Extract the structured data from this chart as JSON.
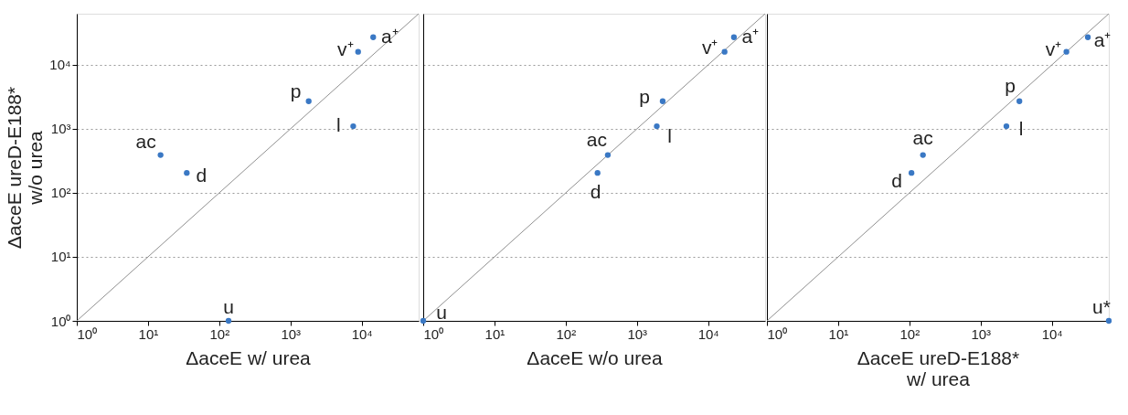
{
  "chart_data": [
    {
      "type": "scatter",
      "xlabel": "ΔaceE w/ urea",
      "ylabel": "ΔaceE ureD-E188*\nw/o urea",
      "log": "xy",
      "grid": "y",
      "xlim": [
        1,
        63000
      ],
      "ylim": [
        1,
        63000
      ],
      "xticks": [
        {
          "value": 1,
          "label": "10⁰"
        },
        {
          "value": 10,
          "label": "10¹"
        },
        {
          "value": 100,
          "label": "10²"
        },
        {
          "value": 1000,
          "label": "10³"
        },
        {
          "value": 10000,
          "label": "10⁴"
        }
      ],
      "yticks": [
        {
          "value": 1,
          "label": "10⁰"
        },
        {
          "value": 10,
          "label": "10¹"
        },
        {
          "value": 100,
          "label": "10²"
        },
        {
          "value": 1000,
          "label": "10³"
        },
        {
          "value": 10000,
          "label": "10⁴"
        }
      ],
      "series": [
        {
          "type": "line",
          "color": "#909090",
          "x": [
            1,
            63000
          ],
          "values": [
            1,
            63000
          ]
        },
        {
          "color": "#3a78c4",
          "x": [
            14500,
            8900,
            1800,
            7600,
            15,
            35,
            135
          ],
          "values": [
            27000,
            16000,
            2700,
            1100,
            390,
            205,
            1
          ]
        }
      ],
      "annotations": [
        {
          "text": "a⁺",
          "x": 14500,
          "y": 27000
        },
        {
          "text": "v⁺",
          "x": 8900,
          "y": 16000
        },
        {
          "text": "p",
          "x": 1800,
          "y": 2700
        },
        {
          "text": "l",
          "x": 7600,
          "y": 1100
        },
        {
          "text": "ac",
          "x": 15,
          "y": 390
        },
        {
          "text": "d",
          "x": 35,
          "y": 205
        },
        {
          "text": "u",
          "x": 135,
          "y": 1
        }
      ]
    },
    {
      "type": "scatter",
      "xlabel": "ΔaceE w/o urea",
      "log": "xy",
      "grid": "y",
      "tick_labels": "x",
      "xlim": [
        1,
        63000
      ],
      "ylim": [
        1,
        63000
      ],
      "xticks": [
        {
          "value": 1,
          "label": "10⁰"
        },
        {
          "value": 10,
          "label": "10¹"
        },
        {
          "value": 100,
          "label": "10²"
        },
        {
          "value": 1000,
          "label": "10³"
        },
        {
          "value": 10000,
          "label": "10⁴"
        }
      ],
      "yticks": [
        {
          "value": 1,
          "label": null
        },
        {
          "value": 10,
          "label": null
        },
        {
          "value": 100,
          "label": null
        },
        {
          "value": 1000,
          "label": null
        },
        {
          "value": 10000,
          "label": null
        }
      ],
      "series": [
        {
          "type": "line",
          "color": "#909090",
          "x": [
            1,
            63000
          ],
          "values": [
            1,
            63000
          ]
        },
        {
          "color": "#3a78c4",
          "x": [
            23000,
            17000,
            2300,
            1900,
            390,
            280,
            1
          ],
          "values": [
            27000,
            16000,
            2700,
            1100,
            390,
            205,
            1
          ]
        }
      ],
      "annotations": [
        {
          "text": "a⁺",
          "x": 23000,
          "y": 27000
        },
        {
          "text": "v⁺",
          "x": 17000,
          "y": 16000
        },
        {
          "text": "p",
          "x": 2300,
          "y": 2700
        },
        {
          "text": "l",
          "x": 1900,
          "y": 1100
        },
        {
          "text": "ac",
          "x": 390,
          "y": 390
        },
        {
          "text": "d",
          "x": 280,
          "y": 205
        },
        {
          "text": "u",
          "x": 1,
          "y": 1
        }
      ]
    },
    {
      "type": "scatter",
      "xlabel": "ΔaceE ureD-E188*\nw/ urea",
      "log": "xy",
      "grid": "y",
      "tick_labels": "x",
      "xlim": [
        1,
        63000
      ],
      "ylim": [
        1,
        63000
      ],
      "xticks": [
        {
          "value": 1,
          "label": "10⁰"
        },
        {
          "value": 10,
          "label": "10¹"
        },
        {
          "value": 100,
          "label": "10²"
        },
        {
          "value": 1000,
          "label": "10³"
        },
        {
          "value": 10000,
          "label": "10⁴"
        }
      ],
      "yticks": [
        {
          "value": 1,
          "label": null
        },
        {
          "value": 10,
          "label": null
        },
        {
          "value": 100,
          "label": null
        },
        {
          "value": 1000,
          "label": null
        },
        {
          "value": 10000,
          "label": null
        }
      ],
      "series": [
        {
          "type": "line",
          "color": "#909090",
          "x": [
            1,
            63000
          ],
          "values": [
            1,
            63000
          ]
        },
        {
          "color": "#3a78c4",
          "x": [
            32000,
            16000,
            3500,
            2300,
            155,
            107,
            63000
          ],
          "values": [
            27000,
            16000,
            2700,
            1100,
            390,
            205,
            1
          ]
        }
      ],
      "annotations": [
        {
          "text": "a⁺",
          "x": 32000,
          "y": 27000
        },
        {
          "text": "v⁺",
          "x": 16000,
          "y": 16000
        },
        {
          "text": "p",
          "x": 3500,
          "y": 2700
        },
        {
          "text": "l",
          "x": 2300,
          "y": 1100
        },
        {
          "text": "ac",
          "x": 155,
          "y": 390
        },
        {
          "text": "d",
          "x": 107,
          "y": 205
        },
        {
          "text": "u*",
          "x": 63000,
          "y": 1
        }
      ]
    }
  ]
}
